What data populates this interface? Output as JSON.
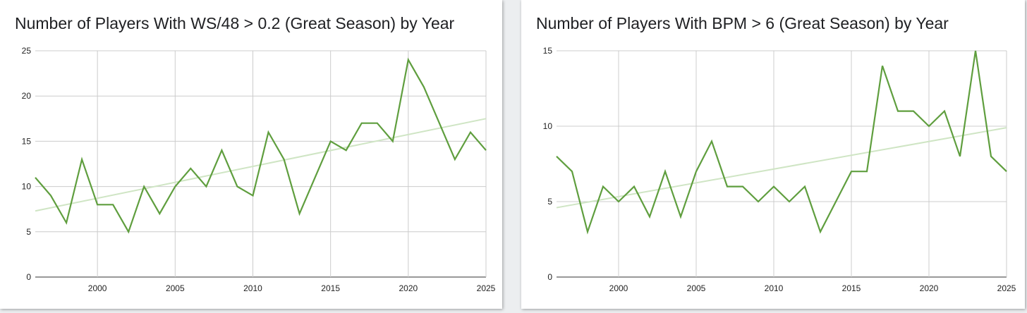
{
  "chart_data": [
    {
      "type": "line",
      "title": "Number of Players With WS/48 > 0.2 (Great Season) by Year",
      "xlabel": "",
      "ylabel": "",
      "x": [
        1996,
        1997,
        1998,
        1999,
        2000,
        2001,
        2002,
        2003,
        2004,
        2005,
        2006,
        2007,
        2008,
        2009,
        2010,
        2011,
        2012,
        2013,
        2014,
        2015,
        2016,
        2017,
        2018,
        2019,
        2020,
        2021,
        2022,
        2023,
        2024,
        2025
      ],
      "series": [
        {
          "values": [
            11,
            9,
            6,
            13,
            8,
            8,
            5,
            10,
            7,
            10,
            12,
            10,
            14,
            10,
            9,
            16,
            13,
            7,
            11,
            15,
            14,
            17,
            17,
            15,
            24,
            21,
            17,
            13,
            16,
            14
          ]
        }
      ],
      "trendline": {
        "start": [
          1996,
          7.3
        ],
        "end": [
          2025,
          17.5
        ]
      },
      "xlim": [
        1996,
        2025
      ],
      "ylim": [
        0,
        25
      ],
      "xticks": [
        "2000",
        "2005",
        "2010",
        "2015",
        "2020",
        "2025"
      ],
      "yticks": [
        "0",
        "5",
        "10",
        "15",
        "20",
        "25"
      ],
      "grid": true,
      "legend": "none",
      "line_color": "#5f9e3e",
      "trend_color": "#cfe5c4"
    },
    {
      "type": "line",
      "title": "Number of Players With BPM > 6 (Great Season) by Year",
      "xlabel": "",
      "ylabel": "",
      "x": [
        1996,
        1997,
        1998,
        1999,
        2000,
        2001,
        2002,
        2003,
        2004,
        2005,
        2006,
        2007,
        2008,
        2009,
        2010,
        2011,
        2012,
        2013,
        2014,
        2015,
        2016,
        2017,
        2018,
        2019,
        2020,
        2021,
        2022,
        2023,
        2024,
        2025
      ],
      "series": [
        {
          "values": [
            8,
            7,
            3,
            6,
            5,
            6,
            4,
            7,
            4,
            7,
            9,
            6,
            6,
            5,
            6,
            5,
            6,
            3,
            5,
            7,
            7,
            14,
            11,
            11,
            10,
            11,
            8,
            15,
            8,
            7
          ]
        }
      ],
      "trendline": {
        "start": [
          1996,
          4.6
        ],
        "end": [
          2025,
          9.9
        ]
      },
      "xlim": [
        1996,
        2025
      ],
      "ylim": [
        0,
        15
      ],
      "xticks": [
        "2000",
        "2005",
        "2010",
        "2015",
        "2020",
        "2025"
      ],
      "yticks": [
        "0",
        "5",
        "10",
        "15"
      ],
      "grid": true,
      "legend": "none",
      "line_color": "#5f9e3e",
      "trend_color": "#cfe5c4"
    }
  ]
}
